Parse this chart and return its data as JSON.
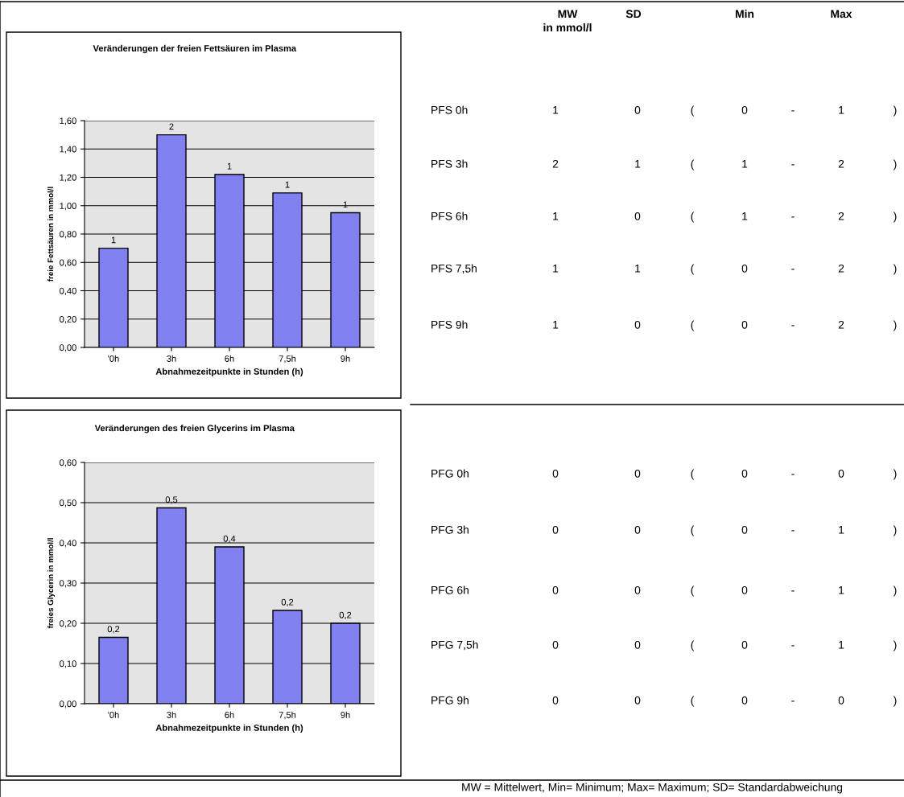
{
  "chart_data": [
    {
      "type": "bar",
      "title": "Veränderungen der freien Fettsäuren im Plasma",
      "xlabel": "Abnahmezeitpunkte in Stunden (h)",
      "ylabel": "freie Fettsäuren in mmol/l",
      "categories": [
        "'0h",
        "3h",
        "6h",
        "7,5h",
        "9h"
      ],
      "values": [
        0.7,
        1.5,
        1.22,
        1.09,
        0.95
      ],
      "value_labels": [
        "1",
        "2",
        "1",
        "1",
        "1"
      ],
      "color": "#8080f0",
      "ylim": [
        0,
        1.6
      ],
      "yticks": [
        {
          "value": 0,
          "label": "0,00"
        },
        {
          "value": 0.2,
          "label": "0,20"
        },
        {
          "value": 0.4,
          "label": "0,40"
        },
        {
          "value": 0.6,
          "label": "0,60"
        },
        {
          "value": 0.8,
          "label": "0,80"
        },
        {
          "value": 1.0,
          "label": "1,00"
        },
        {
          "value": 1.2,
          "label": "1,20"
        },
        {
          "value": 1.4,
          "label": "1,40"
        },
        {
          "value": 1.6,
          "label": "1,60"
        }
      ],
      "grid": "y"
    },
    {
      "type": "other",
      "annotations": [
        "MW\nin mmol/l",
        "SD",
        "Min",
        "Max",
        "PFS 0h",
        "1",
        "0",
        "(",
        "0",
        "-",
        "1",
        ")",
        "PFS 3h",
        "2",
        "1",
        "(",
        "1",
        "-",
        "2",
        ")",
        "PFS 6h",
        "1",
        "0",
        "(",
        "1",
        "-",
        "2",
        ")",
        "PFS 7,5h",
        "1",
        "1",
        "(",
        "0",
        "-",
        "2",
        ")",
        "PFS 9h",
        "1",
        "0",
        "(",
        "0",
        "-",
        "2",
        ")"
      ]
    },
    {
      "type": "bar",
      "title": "Veränderungen des freien Glycerins im Plasma",
      "xlabel": "Abnahmezeitpunkte in Stunden (h)",
      "ylabel": "freies Glycerin in mmol/l",
      "categories": [
        "'0h",
        "3h",
        "6h",
        "7,5h",
        "9h"
      ],
      "values": [
        0.165,
        0.487,
        0.39,
        0.232,
        0.2
      ],
      "value_labels": [
        "0,2",
        "0,5",
        "0,4",
        "0,2",
        "0,2"
      ],
      "color": "#8080f0",
      "ylim": [
        0,
        0.6
      ],
      "yticks": [
        {
          "value": 0,
          "label": "0,00"
        },
        {
          "value": 0.1,
          "label": "0,10"
        },
        {
          "value": 0.2,
          "label": "0,20"
        },
        {
          "value": 0.3,
          "label": "0,30"
        },
        {
          "value": 0.4,
          "label": "0,40"
        },
        {
          "value": 0.5,
          "label": "0,50"
        },
        {
          "value": 0.6,
          "label": "0,60"
        }
      ],
      "grid": "y"
    },
    {
      "type": "other",
      "annotations": [
        "PFG 0h",
        "0",
        "0",
        "(",
        "0",
        "-",
        "0",
        ")",
        "PFG 3h",
        "0",
        "0",
        "(",
        "0",
        "-",
        "1",
        ")",
        "PFG 6h",
        "0",
        "0",
        "(",
        "0",
        "-",
        "1",
        ")",
        "PFG 7,5h",
        "0",
        "0",
        "(",
        "0",
        "-",
        "1",
        ")",
        "PFG 9h",
        "0",
        "0",
        "(",
        "0",
        "-",
        "0",
        ")",
        "MW = Mittelwert, Min= Minimum; Max= Maximum; SD= Standardabweichung"
      ]
    }
  ]
}
